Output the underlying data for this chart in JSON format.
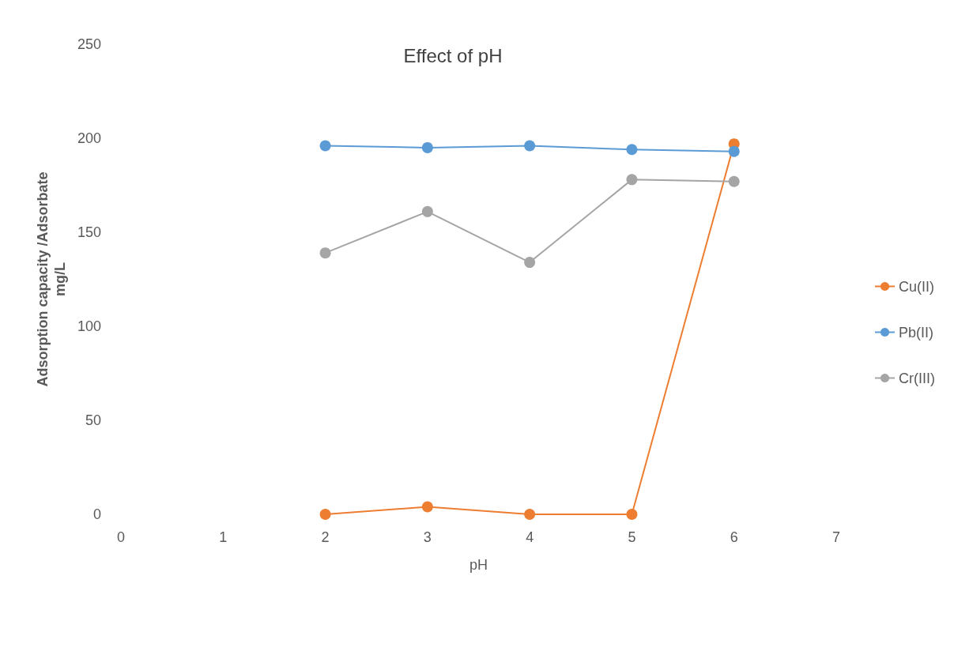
{
  "chart_data": {
    "type": "line",
    "title": "Effect of pH",
    "xlabel": "pH",
    "ylabel": "Adsorption capacity /Adsorbate\nmg/L",
    "x": [
      2,
      3,
      4,
      5,
      6
    ],
    "series": [
      {
        "name": "Cu(II)",
        "color": "#ed7d31",
        "values": [
          0,
          4,
          0,
          0,
          197
        ]
      },
      {
        "name": "Pb(II)",
        "color": "#5b9bd5",
        "values": [
          196,
          195,
          196,
          194,
          193
        ]
      },
      {
        "name": "Cr(III)",
        "color": "#a5a5a5",
        "values": [
          139,
          161,
          134,
          178,
          177
        ]
      }
    ],
    "xlim": [
      0,
      7
    ],
    "xticks": [
      0,
      1,
      2,
      3,
      4,
      5,
      6,
      7
    ],
    "ylim": [
      0,
      250
    ],
    "yticks": [
      0,
      50,
      100,
      150,
      200,
      250
    ],
    "grid": false,
    "legend": "right",
    "marker": "circle",
    "line_style": "solid"
  }
}
